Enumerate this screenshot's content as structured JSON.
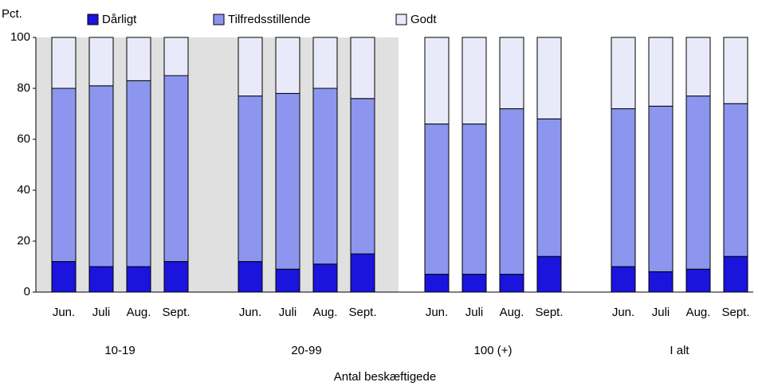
{
  "chart_data": {
    "type": "stacked_bar",
    "y_unit_label": "Pct.",
    "x_axis_label": "Antal beskæftigede",
    "groups": [
      "10-19",
      "20-99",
      "100 (+)",
      "I alt"
    ],
    "categories": [
      "Jun.",
      "Juli",
      "Aug.",
      "Sept.",
      "Jun.",
      "Juli",
      "Aug.",
      "Sept.",
      "Jun.",
      "Juli",
      "Aug.",
      "Sept.",
      "Jun.",
      "Juli",
      "Aug.",
      "Sept."
    ],
    "series": [
      {
        "name": "Dårligt",
        "color": "#1a14dc",
        "values": [
          12,
          10,
          10,
          12,
          12,
          9,
          11,
          15,
          7,
          7,
          7,
          14,
          10,
          8,
          9,
          14
        ]
      },
      {
        "name": "Tilfredsstillende",
        "color": "#8c96ee",
        "values": [
          68,
          71,
          73,
          73,
          65,
          69,
          69,
          61,
          59,
          59,
          65,
          54,
          62,
          65,
          68,
          60
        ]
      },
      {
        "name": "Godt",
        "color": "#e8eafa",
        "values": [
          20,
          19,
          17,
          15,
          23,
          22,
          20,
          24,
          34,
          34,
          28,
          32,
          28,
          27,
          23,
          26
        ]
      }
    ],
    "ylim": [
      0,
      100
    ],
    "yticks": [
      0,
      20,
      40,
      60,
      80,
      100
    ]
  }
}
